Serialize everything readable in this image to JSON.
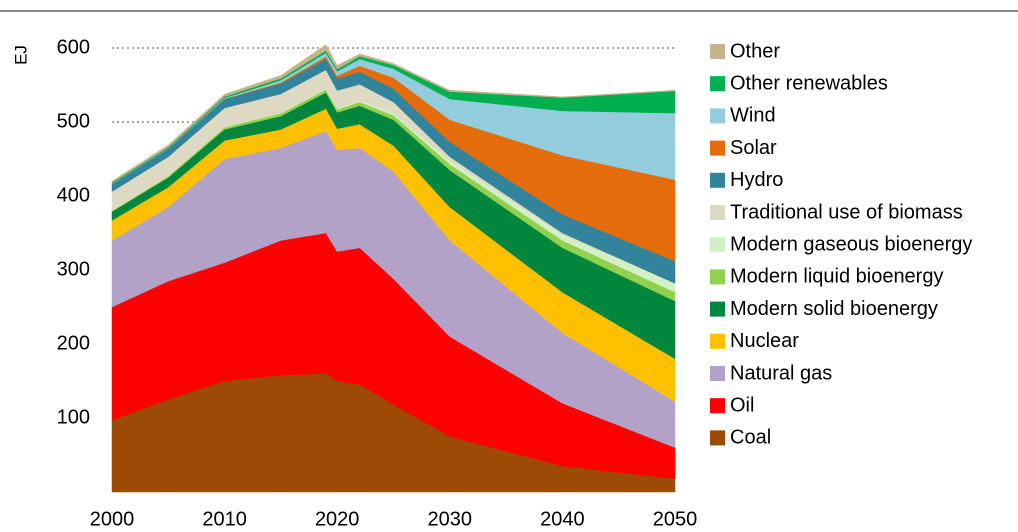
{
  "chart_data": {
    "type": "stacked-area",
    "y_label": "EJ",
    "x": [
      2000,
      2005,
      2010,
      2015,
      2019,
      2020,
      2022,
      2025,
      2030,
      2040,
      2050
    ],
    "xlim": [
      2000,
      2050
    ],
    "xticks": [
      2000,
      2010,
      2020,
      2030,
      2040,
      2050
    ],
    "ylim": [
      0,
      620
    ],
    "yticks": [
      100,
      200,
      300,
      400,
      500,
      600
    ],
    "grid": true,
    "legend": "right",
    "series": [
      {
        "name": "Coal",
        "color": "#9c4a06",
        "values": [
          97,
          125,
          150,
          158,
          160,
          150,
          145,
          118,
          75,
          35,
          18
        ]
      },
      {
        "name": "Oil",
        "color": "#ff0000",
        "values": [
          153,
          160,
          160,
          182,
          190,
          175,
          185,
          170,
          135,
          85,
          42
        ]
      },
      {
        "name": "Natural gas",
        "color": "#b3a2c7",
        "values": [
          90,
          100,
          140,
          125,
          138,
          137,
          135,
          145,
          130,
          95,
          62
        ]
      },
      {
        "name": "Nuclear",
        "color": "#ffc000",
        "values": [
          27,
          27,
          25,
          25,
          30,
          29,
          32,
          35,
          45,
          55,
          58
        ]
      },
      {
        "name": "Modern solid bioenergy",
        "color": "#00863d",
        "values": [
          12,
          13,
          15,
          18,
          22,
          22,
          25,
          35,
          50,
          60,
          78
        ]
      },
      {
        "name": "Modern liquid bioenergy",
        "color": "#92d050",
        "values": [
          1,
          2,
          3,
          4,
          4,
          4,
          5,
          6,
          8,
          10,
          12
        ]
      },
      {
        "name": "Modern gaseous bioenergy",
        "color": "#d3efc4",
        "values": [
          1,
          1,
          1,
          1,
          1.5,
          1.5,
          2,
          3,
          5,
          8,
          12
        ]
      },
      {
        "name": "Traditional use of biomass",
        "color": "#ddd9c3",
        "values": [
          25,
          25,
          25,
          25,
          25,
          24,
          22,
          15,
          5,
          2,
          0
        ]
      },
      {
        "name": "Hydro",
        "color": "#31849b",
        "values": [
          10,
          11,
          12,
          14,
          15,
          16,
          17,
          18,
          20,
          25,
          30
        ]
      },
      {
        "name": "Solar",
        "color": "#e46c0a",
        "values": [
          0,
          0,
          0.5,
          1.5,
          3,
          4,
          8,
          15,
          30,
          80,
          110
        ]
      },
      {
        "name": "Wind",
        "color": "#93cddd",
        "values": [
          0.5,
          0.5,
          1,
          3,
          5,
          6,
          9,
          12,
          28,
          60,
          90
        ]
      },
      {
        "name": "Other renewables",
        "color": "#00b050",
        "values": [
          1.5,
          1.5,
          2,
          2.5,
          3,
          3,
          4,
          5,
          10,
          18,
          30
        ]
      },
      {
        "name": "Other",
        "color": "#c4b48c",
        "values": [
          2,
          3,
          3,
          4,
          8,
          5,
          3,
          2,
          2,
          1,
          1
        ]
      }
    ]
  }
}
